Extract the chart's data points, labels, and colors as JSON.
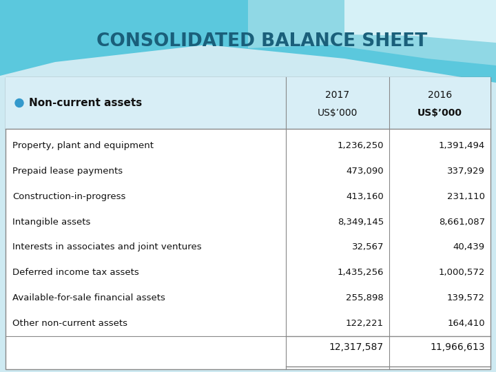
{
  "title": "CONSOLIDATED BALANCE SHEET",
  "header_label": "Non-current assets",
  "col2_header_line1": "2017",
  "col2_header_line2": "US$’000",
  "col3_header_line1": "2016",
  "col3_header_line2": "US$’000",
  "rows": [
    [
      "Property, plant and equipment",
      "1,236,250",
      "1,391,494"
    ],
    [
      "Prepaid lease payments",
      "473,090",
      "337,929"
    ],
    [
      "Construction-in-progress",
      "413,160",
      "231,110"
    ],
    [
      "Intangible assets",
      "8,349,145",
      "8,661,087"
    ],
    [
      "Interests in associates and joint ventures",
      "32,567",
      "40,439"
    ],
    [
      "Deferred income tax assets",
      "1,435,256",
      "1,000,572"
    ],
    [
      "Available-for-sale financial assets",
      "255,898",
      "139,572"
    ],
    [
      "Other non-current assets",
      "122,221",
      "164,410"
    ]
  ],
  "total_2017": "12,317,587",
  "total_2016": "11,966,613",
  "bg_color": "#ceeaf2",
  "table_bg": "#ffffff",
  "title_color": "#1a5f7a",
  "header_text_color": "#111111",
  "body_text_color": "#111111",
  "line_color": "#888888",
  "bullet_color": "#3399cc",
  "swoosh1_color": "#5bc8dd",
  "swoosh2_color": "#a8dfe9",
  "swoosh3_color": "#daf0f5"
}
